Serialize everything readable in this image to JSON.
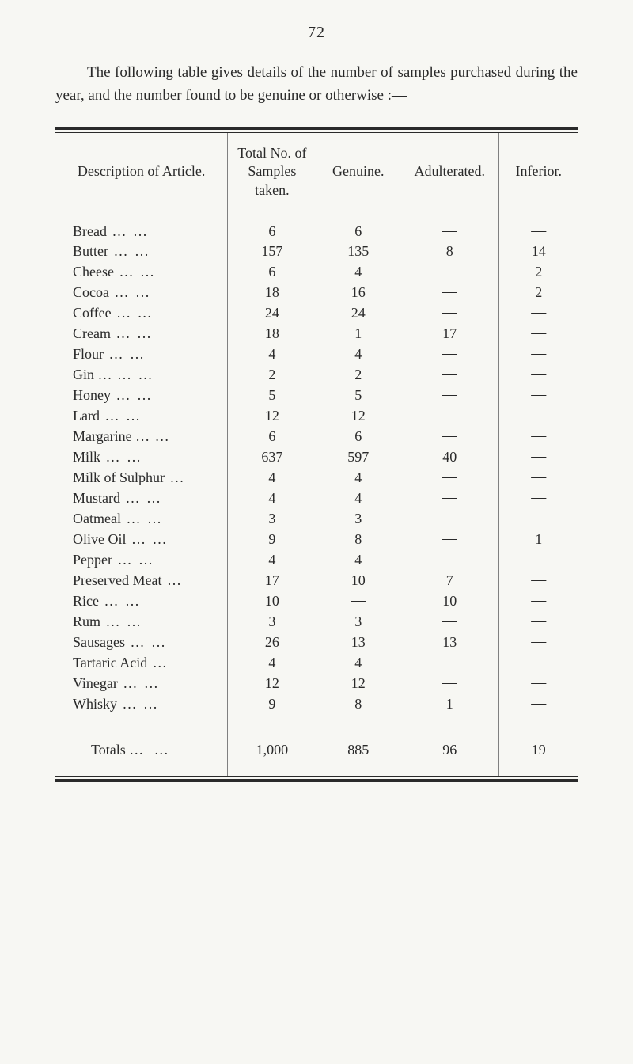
{
  "page_number": "72",
  "intro_text": "The following table gives details of the number of samples purchased during the year, and the number found to be genuine or otherwise :—",
  "table": {
    "columns": [
      "Description of Article.",
      "Total No. of Samples taken.",
      "Genuine.",
      "Adulterated.",
      "Inferior."
    ],
    "rows": [
      {
        "desc": "Bread",
        "dots": "…   …",
        "total": "6",
        "genuine": "6",
        "adulterated": "—",
        "inferior": "—"
      },
      {
        "desc": "Butter",
        "dots": "…   …",
        "total": "157",
        "genuine": "135",
        "adulterated": "8",
        "inferior": "14"
      },
      {
        "desc": "Cheese",
        "dots": "…   …",
        "total": "6",
        "genuine": "4",
        "adulterated": "—",
        "inferior": "2"
      },
      {
        "desc": "Cocoa",
        "dots": "…   …",
        "total": "18",
        "genuine": "16",
        "adulterated": "—",
        "inferior": "2"
      },
      {
        "desc": "Coffee",
        "dots": "…   …",
        "total": "24",
        "genuine": "24",
        "adulterated": "—",
        "inferior": "—"
      },
      {
        "desc": "Cream",
        "dots": "…   …",
        "total": "18",
        "genuine": "1",
        "adulterated": "17",
        "inferior": "—"
      },
      {
        "desc": "Flour",
        "dots": "…   …",
        "total": "4",
        "genuine": "4",
        "adulterated": "—",
        "inferior": "—"
      },
      {
        "desc": "Gin …",
        "dots": "…   …",
        "total": "2",
        "genuine": "2",
        "adulterated": "—",
        "inferior": "—"
      },
      {
        "desc": "Honey",
        "dots": "…   …",
        "total": "5",
        "genuine": "5",
        "adulterated": "—",
        "inferior": "—"
      },
      {
        "desc": "Lard",
        "dots": "…   …",
        "total": "12",
        "genuine": "12",
        "adulterated": "—",
        "inferior": "—"
      },
      {
        "desc": "Margarine …",
        "dots": "…",
        "total": "6",
        "genuine": "6",
        "adulterated": "—",
        "inferior": "—"
      },
      {
        "desc": "Milk",
        "dots": "…   …",
        "total": "637",
        "genuine": "597",
        "adulterated": "40",
        "inferior": "—"
      },
      {
        "desc": "Milk of Sulphur",
        "dots": "…",
        "total": "4",
        "genuine": "4",
        "adulterated": "—",
        "inferior": "—"
      },
      {
        "desc": "Mustard",
        "dots": "…   …",
        "total": "4",
        "genuine": "4",
        "adulterated": "—",
        "inferior": "—"
      },
      {
        "desc": "Oatmeal",
        "dots": "…   …",
        "total": "3",
        "genuine": "3",
        "adulterated": "—",
        "inferior": "—"
      },
      {
        "desc": "Olive Oil",
        "dots": "…   …",
        "total": "9",
        "genuine": "8",
        "adulterated": "—",
        "inferior": "1"
      },
      {
        "desc": "Pepper",
        "dots": "…   …",
        "total": "4",
        "genuine": "4",
        "adulterated": "—",
        "inferior": "—"
      },
      {
        "desc": "Preserved Meat",
        "dots": "…",
        "total": "17",
        "genuine": "10",
        "adulterated": "7",
        "inferior": "—"
      },
      {
        "desc": "Rice",
        "dots": "…   …",
        "total": "10",
        "genuine": "—",
        "adulterated": "10",
        "inferior": "—"
      },
      {
        "desc": "Rum",
        "dots": "…   …",
        "total": "3",
        "genuine": "3",
        "adulterated": "—",
        "inferior": "—"
      },
      {
        "desc": "Sausages",
        "dots": "…   …",
        "total": "26",
        "genuine": "13",
        "adulterated": "13",
        "inferior": "—"
      },
      {
        "desc": "Tartaric Acid",
        "dots": "…",
        "total": "4",
        "genuine": "4",
        "adulterated": "—",
        "inferior": "—"
      },
      {
        "desc": "Vinegar",
        "dots": "…   …",
        "total": "12",
        "genuine": "12",
        "adulterated": "—",
        "inferior": "—"
      },
      {
        "desc": "Whisky",
        "dots": "…   …",
        "total": "9",
        "genuine": "8",
        "adulterated": "1",
        "inferior": "—"
      }
    ],
    "totals": {
      "label": "Totals …",
      "dots": "…",
      "total": "1,000",
      "genuine": "885",
      "adulterated": "96",
      "inferior": "19"
    }
  },
  "styling": {
    "background_color": "#f7f7f3",
    "text_color": "#2a2a2a",
    "border_color_thick": "#2a2a2a",
    "border_color_thin": "#808080",
    "font_family": "Georgia, serif",
    "body_font_size": 19,
    "table_font_size": 18
  }
}
